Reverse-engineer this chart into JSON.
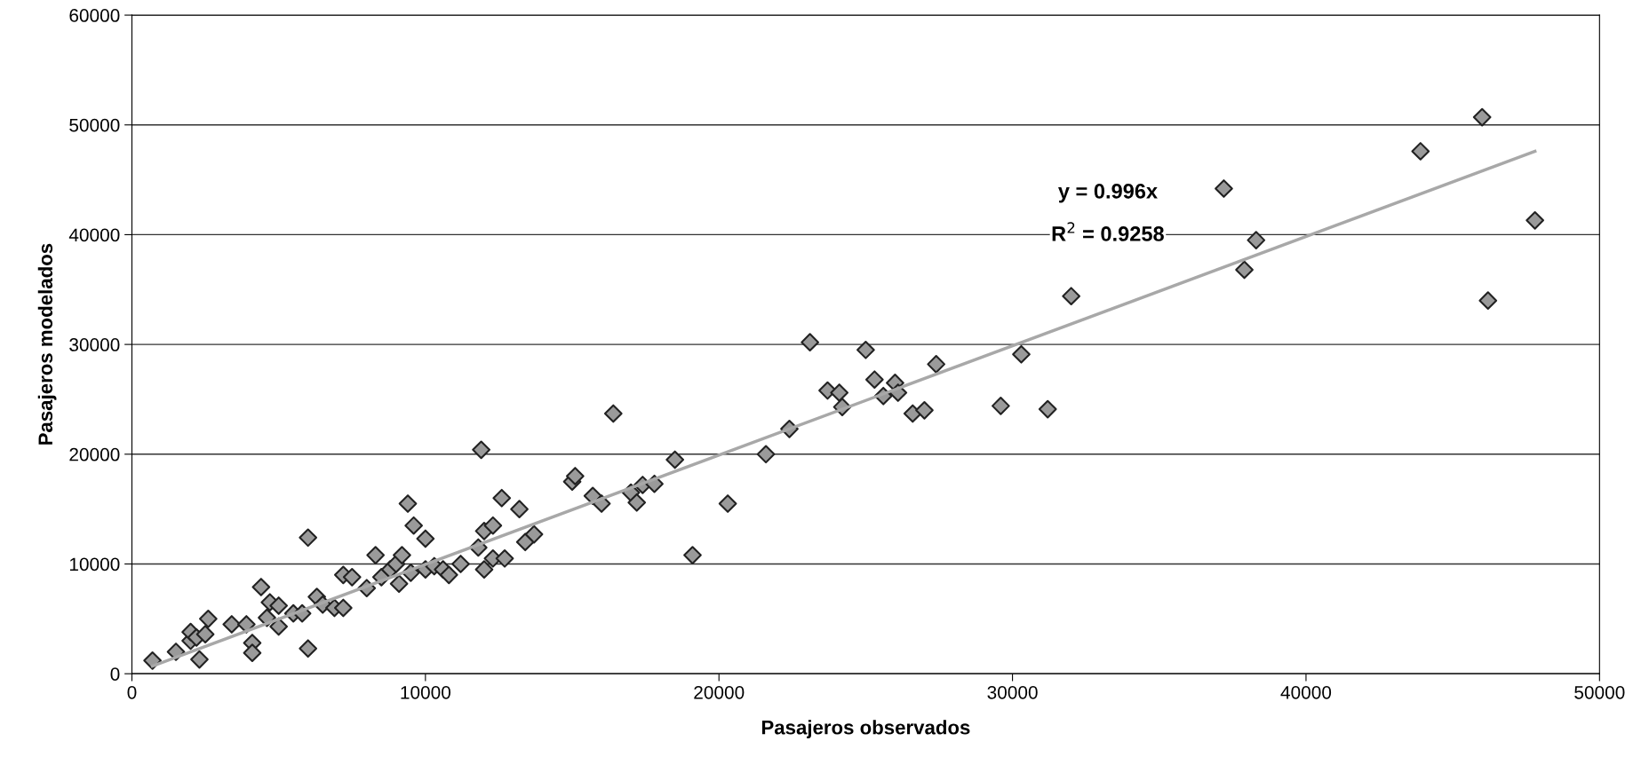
{
  "chart_data": {
    "type": "scatter",
    "xlabel": "Pasajeros observados",
    "ylabel": "Pasajeros modelados",
    "annotations": [
      "y = 0.996x",
      "R$^{2}$ = 0.9258"
    ],
    "xlim": [
      0,
      50000
    ],
    "xticks": [
      0,
      10000,
      20000,
      30000,
      40000,
      50000
    ],
    "ylim": [
      0,
      60000
    ],
    "yticks": [
      0,
      10000,
      20000,
      30000,
      40000,
      50000,
      60000
    ],
    "grid": "y",
    "series": [
      {
        "marker": "diamond",
        "color": "#9a9a9a",
        "x": [
          700,
          1500,
          2300,
          2000,
          2000,
          2200,
          2500,
          2600,
          3400,
          3900,
          4100,
          4100,
          4400,
          4700,
          5000,
          5000,
          4600,
          5500,
          5800,
          6000,
          6000,
          6300,
          6500,
          6900,
          7200,
          7200,
          7500,
          8000,
          8300,
          8500,
          8800,
          9000,
          9100,
          9200,
          9400,
          9600,
          9500,
          10000,
          10000,
          10300,
          10600,
          10800,
          11200,
          11800,
          11900,
          12000,
          12000,
          12300,
          12300,
          12600,
          12700,
          13200,
          13400,
          13700,
          15000,
          15100,
          15700,
          16000,
          16400,
          17000,
          17200,
          17400,
          17800,
          18500,
          19100,
          20300,
          21600,
          22400,
          23100,
          23700,
          24100,
          24200,
          25000,
          25300,
          25600,
          26000,
          26100,
          26600,
          27000,
          27400,
          29600,
          30300,
          31200,
          32000,
          37200,
          37900,
          38300,
          43900,
          46000,
          46200,
          47800
        ],
        "values": [
          1200,
          2000,
          1300,
          3000,
          3800,
          3300,
          3600,
          5000,
          4500,
          4500,
          2800,
          1900,
          7900,
          6500,
          6200,
          4300,
          5100,
          5500,
          5500,
          12400,
          2300,
          7000,
          6300,
          6000,
          6000,
          9000,
          8800,
          7800,
          10800,
          8800,
          9500,
          10000,
          8200,
          10800,
          15500,
          13500,
          9200,
          12300,
          9500,
          9800,
          9500,
          9000,
          10000,
          11500,
          20400,
          13000,
          9500,
          10500,
          13500,
          16000,
          10500,
          15000,
          12000,
          12700,
          17500,
          18000,
          16200,
          15500,
          23700,
          16500,
          15600,
          17200,
          17300,
          19500,
          10800,
          15500,
          20000,
          22300,
          30200,
          25800,
          25600,
          24300,
          29500,
          26800,
          25300,
          26500,
          25600,
          23700,
          24000,
          28200,
          24400,
          29100,
          24100,
          34400,
          44200,
          36800,
          39500,
          47600,
          50700,
          34000,
          41300
        ]
      },
      {
        "type": "line",
        "marker": "none",
        "color": "#a8a8a8",
        "x": [
          700,
          47800
        ],
        "values": [
          700,
          47600
        ]
      }
    ]
  }
}
